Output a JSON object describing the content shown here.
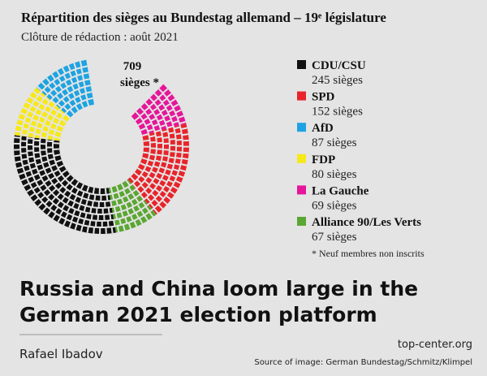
{
  "chart_data": {
    "type": "parliament",
    "title": "Répartition des sièges au Bundestag allemand – 19ᵉ législature",
    "subtitle": "Clôture de rédaction : août 2021",
    "total": 709,
    "total_label": "sièges *",
    "categories": [
      "CDU/CSU",
      "SPD",
      "AfD",
      "FDP",
      "La Gauche",
      "Alliance 90/Les Verts"
    ],
    "values": [
      245,
      152,
      87,
      80,
      69,
      67
    ],
    "value_labels": [
      "245 sièges",
      "152 sièges",
      "87 sièges",
      "80 sièges",
      "69 sièges",
      "67 sièges"
    ],
    "colors": [
      "#111111",
      "#e8242a",
      "#1ea3e2",
      "#f7e81a",
      "#e5169a",
      "#5aa632"
    ],
    "note": "* Neuf membres non inscrits"
  },
  "article": {
    "headline": [
      "Russia and China loom large in the",
      "German 2021 election platform"
    ],
    "author": "Rafael Ibadov",
    "site": "top-center.org",
    "source": "Source of image: German Bundestag/Schmitz/Klimpel"
  }
}
